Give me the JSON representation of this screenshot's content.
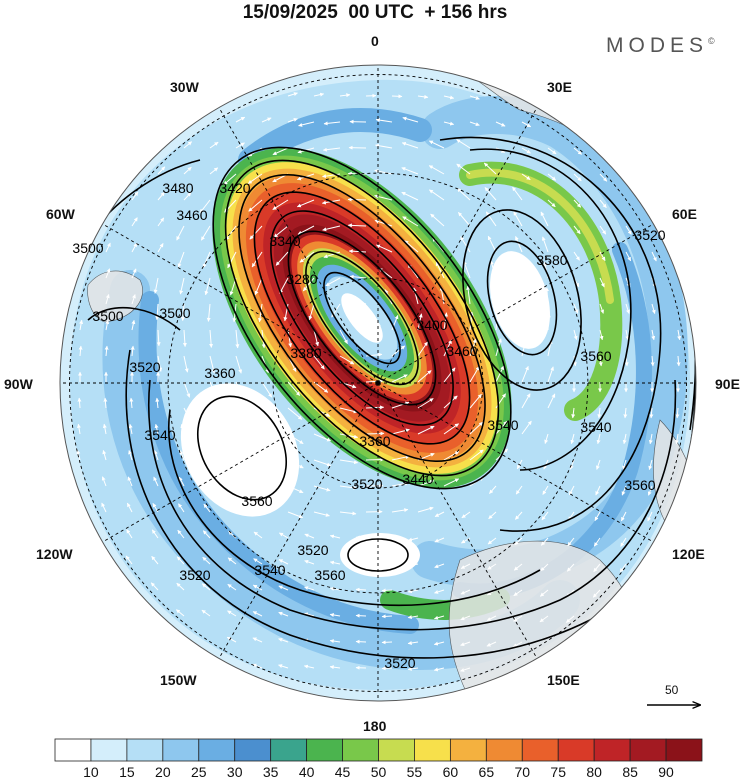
{
  "header": {
    "title": "15/09/2025  00 UTC  + 156 hrs",
    "brand": "MODES",
    "brand_mark": "©"
  },
  "map": {
    "projection": "polar-stereographic",
    "longitude_labels": [
      "0",
      "30E",
      "60E",
      "90E",
      "120E",
      "150E",
      "180",
      "150W",
      "120W",
      "90W",
      "60W",
      "30W"
    ],
    "contour_labels": [
      "3480",
      "3500",
      "3500",
      "3500",
      "3460",
      "3420",
      "3340",
      "3280",
      "3380",
      "3360",
      "3360",
      "3400",
      "3440",
      "3460",
      "3520",
      "3520",
      "3540",
      "3540",
      "3560",
      "3520",
      "3540",
      "3560",
      "3520",
      "3520",
      "3540",
      "3560",
      "3580",
      "3560",
      "3520"
    ],
    "wind_reference": {
      "value": "50"
    },
    "colors": {
      "land": "#e6e6e6",
      "contour": "#000000",
      "vector": "#ffffff"
    }
  },
  "colorbar": {
    "ticks": [
      "10",
      "15",
      "20",
      "25",
      "30",
      "35",
      "40",
      "45",
      "50",
      "55",
      "60",
      "65",
      "70",
      "75",
      "80",
      "85",
      "90"
    ],
    "colors": [
      "#ffffff",
      "#d4eefb",
      "#b5dff6",
      "#8ec7ee",
      "#6aaee3",
      "#4b8fcf",
      "#3aa48d",
      "#4bb44e",
      "#79c84a",
      "#c7dc50",
      "#f7e04b",
      "#f4b13f",
      "#ef8a33",
      "#e9602b",
      "#d93a28",
      "#bf2427",
      "#a31a22",
      "#8b1219"
    ]
  }
}
